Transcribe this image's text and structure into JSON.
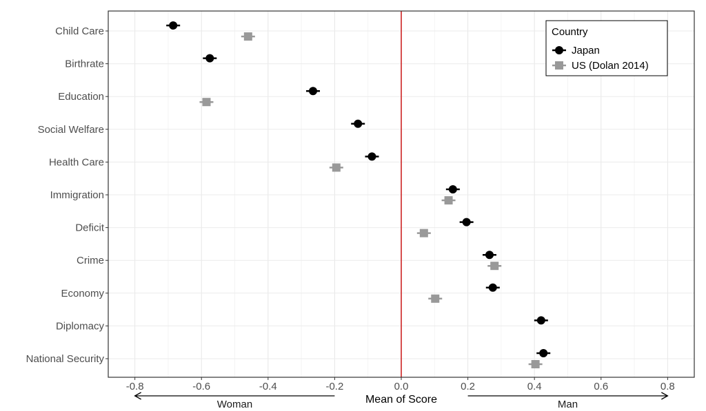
{
  "chart_data": {
    "type": "scatter",
    "title": "",
    "xlabel": "Mean of Score",
    "ylabel": "",
    "xlim": [
      -0.88,
      0.88
    ],
    "xticks": [
      "-0.8",
      "-0.6",
      "-0.4",
      "-0.2",
      "0.0",
      "0.2",
      "0.4",
      "0.6",
      "0.8"
    ],
    "categories": [
      "Child Care",
      "Birthrate",
      "Education",
      "Social Welfare",
      "Health Care",
      "Immigration",
      "Deficit",
      "Crime",
      "Economy",
      "Diplomacy",
      "National Security"
    ],
    "reference_line": {
      "x": 0,
      "color": "#cc2222"
    },
    "grid": true,
    "legend": {
      "title": "Country",
      "position": "top-right"
    },
    "direction_labels": {
      "left": "Woman",
      "right": "Man"
    },
    "series": [
      {
        "name": "Japan",
        "color": "#000000",
        "marker": "circle",
        "values": [
          -0.685,
          -0.575,
          -0.265,
          -0.13,
          -0.088,
          0.155,
          0.196,
          0.265,
          0.275,
          0.42,
          0.427
        ]
      },
      {
        "name": "US (Dolan 2014)",
        "color": "#999999",
        "marker": "square",
        "values": [
          -0.46,
          null,
          -0.585,
          null,
          -0.195,
          0.142,
          0.068,
          0.28,
          0.102,
          null,
          0.403
        ]
      }
    ]
  }
}
